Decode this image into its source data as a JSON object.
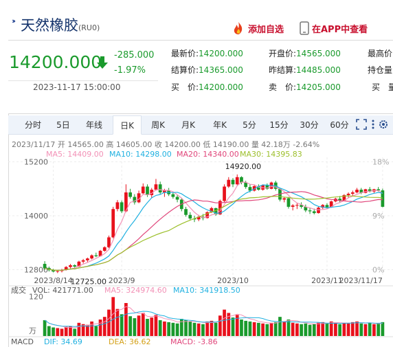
{
  "header": {
    "title": "天然橡胶",
    "symbol": "(RU0)",
    "add_watch_label": "添加自选",
    "app_label": "在APP中查看"
  },
  "quote": {
    "price": "14200.000",
    "change": "-285.000",
    "change_pct": "-1.97%",
    "time": "2023-11-17 15:00:00",
    "rows": [
      [
        {
          "label": "最新价:",
          "value": "14200.000"
        },
        {
          "label": "开盘价:",
          "value": "14565.000"
        },
        {
          "label": "最高价",
          "value": ""
        }
      ],
      [
        {
          "label": "结算价:",
          "value": "14365.000"
        },
        {
          "label": "昨结算:",
          "value": "14485.000"
        },
        {
          "label": "持仓量",
          "value": ""
        }
      ],
      [
        {
          "label": "买　价:",
          "value": "14200.000"
        },
        {
          "label": "卖　价:",
          "value": "14205.000"
        },
        {
          "label": "买　量",
          "value": ""
        }
      ]
    ]
  },
  "tabs": [
    "分时",
    "5日",
    "年线",
    "日K",
    "周K",
    "月K",
    "年K",
    "5分",
    "15分",
    "30分",
    "60分"
  ],
  "active_tab": "日K",
  "icons": [
    "fire-icon",
    "phone-icon",
    "down-arrow-icon",
    "fullscreen-icon",
    "more-icon",
    "settings-icon"
  ],
  "colors": {
    "up": "#e8111c",
    "down": "#1a9a2c",
    "ma5": "#f291b6",
    "ma10": "#1fb0e0",
    "ma20": "#e0457a",
    "ma30": "#9cbf2a",
    "brand": "#14336b"
  },
  "chart_data": {
    "type": "candlestick",
    "info_line": "2023/11/17 开 14565.00 高 14605.00 收 14200.00 低 14190.00 量 42.18万 -2.64%",
    "ma_legend": [
      {
        "name": "MA5",
        "text": "MA5: 14409.00",
        "color": "#f291b6"
      },
      {
        "name": "MA10",
        "text": "MA10: 14298.00",
        "color": "#1fb0e0"
      },
      {
        "name": "MA20",
        "text": "MA20: 14340.00",
        "color": "#e0457a"
      },
      {
        "name": "MA30",
        "text": "MA30: 14395.83",
        "color": "#9cbf2a"
      }
    ],
    "y_ticks": [
      "15200",
      "14000",
      "12800"
    ],
    "y_tick_values": [
      15200,
      14000,
      12800
    ],
    "pct_ticks": [
      "18%",
      "9%",
      "0%"
    ],
    "pct_tick_values": [
      15200,
      14000,
      12800
    ],
    "ylim": [
      12640,
      15300
    ],
    "x_labels": [
      {
        "i": 2,
        "text": "2023/8/14"
      },
      {
        "i": 18,
        "text": "2023/9"
      },
      {
        "i": 44,
        "text": "2023/10"
      },
      {
        "i": 66,
        "text": "2023/11"
      },
      {
        "i": 79,
        "text": "2023/11/17"
      }
    ],
    "annotations": [
      {
        "text": "14920.00",
        "i": 48,
        "value": 14920
      },
      {
        "text": "12725.00",
        "i": 6,
        "value": 12725
      }
    ],
    "ohlc": [
      [
        12930,
        12990,
        12800,
        12830
      ],
      [
        12840,
        12870,
        12760,
        12790
      ],
      [
        12790,
        12820,
        12740,
        12760
      ],
      [
        12760,
        12790,
        12725,
        12770
      ],
      [
        12770,
        12820,
        12740,
        12800
      ],
      [
        12800,
        12880,
        12780,
        12860
      ],
      [
        12860,
        12930,
        12830,
        12900
      ],
      [
        12900,
        12920,
        12840,
        12870
      ],
      [
        12870,
        13000,
        12860,
        12980
      ],
      [
        12980,
        13040,
        12940,
        13010
      ],
      [
        13010,
        13070,
        12970,
        13050
      ],
      [
        13050,
        13140,
        13030,
        13120
      ],
      [
        13120,
        13180,
        13080,
        13100
      ],
      [
        13100,
        13240,
        13090,
        13220
      ],
      [
        13220,
        13320,
        13200,
        13300
      ],
      [
        13300,
        13560,
        13280,
        13520
      ],
      [
        13520,
        14200,
        13500,
        14150
      ],
      [
        14150,
        14350,
        14100,
        14300
      ],
      [
        14300,
        14340,
        14060,
        14100
      ],
      [
        14100,
        14700,
        14080,
        14520
      ],
      [
        14520,
        14600,
        14380,
        14420
      ],
      [
        14420,
        14480,
        14250,
        14300
      ],
      [
        14300,
        14560,
        14280,
        14500
      ],
      [
        14500,
        14720,
        14480,
        14650
      ],
      [
        14650,
        14700,
        14420,
        14460
      ],
      [
        14460,
        14620,
        14400,
        14580
      ],
      [
        14580,
        14820,
        14560,
        14700
      ],
      [
        14700,
        14760,
        14480,
        14520
      ],
      [
        14520,
        14600,
        14420,
        14560
      ],
      [
        14560,
        14620,
        14440,
        14480
      ],
      [
        14480,
        14520,
        14380,
        14420
      ],
      [
        14420,
        14460,
        14300,
        14360
      ],
      [
        14360,
        14400,
        14100,
        14150
      ],
      [
        14150,
        14200,
        13980,
        14020
      ],
      [
        14020,
        14080,
        13900,
        13940
      ],
      [
        13940,
        14000,
        13860,
        13920
      ],
      [
        13920,
        14020,
        13880,
        13980
      ],
      [
        13980,
        14040,
        13900,
        13950
      ],
      [
        13950,
        14100,
        13940,
        14080
      ],
      [
        14080,
        14200,
        14060,
        14170
      ],
      [
        14170,
        14180,
        14000,
        14030
      ],
      [
        14030,
        14360,
        14020,
        14330
      ],
      [
        14330,
        14700,
        14300,
        14650
      ],
      [
        14650,
        14860,
        14620,
        14800
      ],
      [
        14800,
        14840,
        14640,
        14700
      ],
      [
        14700,
        14920,
        14680,
        14860
      ],
      [
        14860,
        14880,
        14700,
        14740
      ],
      [
        14740,
        14780,
        14600,
        14640
      ],
      [
        14640,
        14700,
        14520,
        14560
      ],
      [
        14560,
        14680,
        14540,
        14660
      ],
      [
        14660,
        14700,
        14560,
        14580
      ],
      [
        14580,
        14700,
        14560,
        14680
      ],
      [
        14680,
        14720,
        14580,
        14600
      ],
      [
        14600,
        14760,
        14590,
        14740
      ],
      [
        14740,
        14780,
        14560,
        14600
      ],
      [
        14600,
        14620,
        14320,
        14360
      ],
      [
        14360,
        14420,
        14300,
        14390
      ],
      [
        14390,
        14420,
        14160,
        14200
      ],
      [
        14200,
        14260,
        14120,
        14230
      ],
      [
        14230,
        14290,
        14150,
        14240
      ],
      [
        14240,
        14300,
        14160,
        14200
      ],
      [
        14200,
        14250,
        14080,
        14120
      ],
      [
        14120,
        14180,
        14040,
        14100
      ],
      [
        14100,
        14160,
        14030,
        14060
      ],
      [
        14060,
        14200,
        14050,
        14180
      ],
      [
        14180,
        14260,
        14150,
        14240
      ],
      [
        14240,
        14280,
        14150,
        14190
      ],
      [
        14190,
        14340,
        14180,
        14320
      ],
      [
        14320,
        14400,
        14300,
        14380
      ],
      [
        14380,
        14440,
        14300,
        14340
      ],
      [
        14340,
        14480,
        14330,
        14460
      ],
      [
        14460,
        14520,
        14400,
        14490
      ],
      [
        14490,
        14560,
        14440,
        14520
      ],
      [
        14520,
        14620,
        14500,
        14580
      ],
      [
        14580,
        14620,
        14480,
        14510
      ],
      [
        14510,
        14600,
        14500,
        14590
      ],
      [
        14590,
        14640,
        14520,
        14540
      ],
      [
        14540,
        14600,
        14500,
        14590
      ],
      [
        14590,
        14640,
        14540,
        14565
      ],
      [
        14565,
        14605,
        14190,
        14200
      ]
    ],
    "volume": {
      "label": "成交",
      "ticks": [
        "120",
        "万"
      ],
      "tick_values": [
        120,
        0
      ],
      "ylim": [
        0,
        125
      ],
      "legend": [
        {
          "name": "VOL",
          "text": "VOL: 421771.00",
          "color": "#555555"
        },
        {
          "name": "MA5",
          "text": "MA5: 324974.60",
          "color": "#f291b6"
        },
        {
          "name": "MA10",
          "text": "MA10: 341918.50",
          "color": "#1fb0e0"
        }
      ],
      "values_wan": [
        48,
        30,
        26,
        24,
        22,
        28,
        30,
        22,
        40,
        36,
        34,
        44,
        30,
        50,
        58,
        80,
        118,
        82,
        66,
        100,
        60,
        54,
        62,
        70,
        52,
        56,
        64,
        48,
        44,
        42,
        40,
        38,
        52,
        48,
        44,
        40,
        38,
        36,
        44,
        46,
        40,
        62,
        80,
        70,
        56,
        64,
        50,
        46,
        44,
        42,
        40,
        38,
        36,
        40,
        42,
        58,
        44,
        50,
        40,
        38,
        36,
        38,
        34,
        36,
        40,
        42,
        38,
        44,
        40,
        36,
        40,
        38,
        42,
        44,
        38,
        36,
        40,
        36,
        38,
        42
      ]
    },
    "macd": {
      "label": "MACD",
      "legend": [
        {
          "name": "DIF",
          "text": "DIF: 34.69",
          "color": "#1fb0e0"
        },
        {
          "name": "DEA",
          "text": "DEA: 36.62",
          "color": "#d4a017"
        },
        {
          "name": "MACD",
          "text": "MACD: -3.86",
          "color": "#e0457a"
        }
      ]
    }
  }
}
